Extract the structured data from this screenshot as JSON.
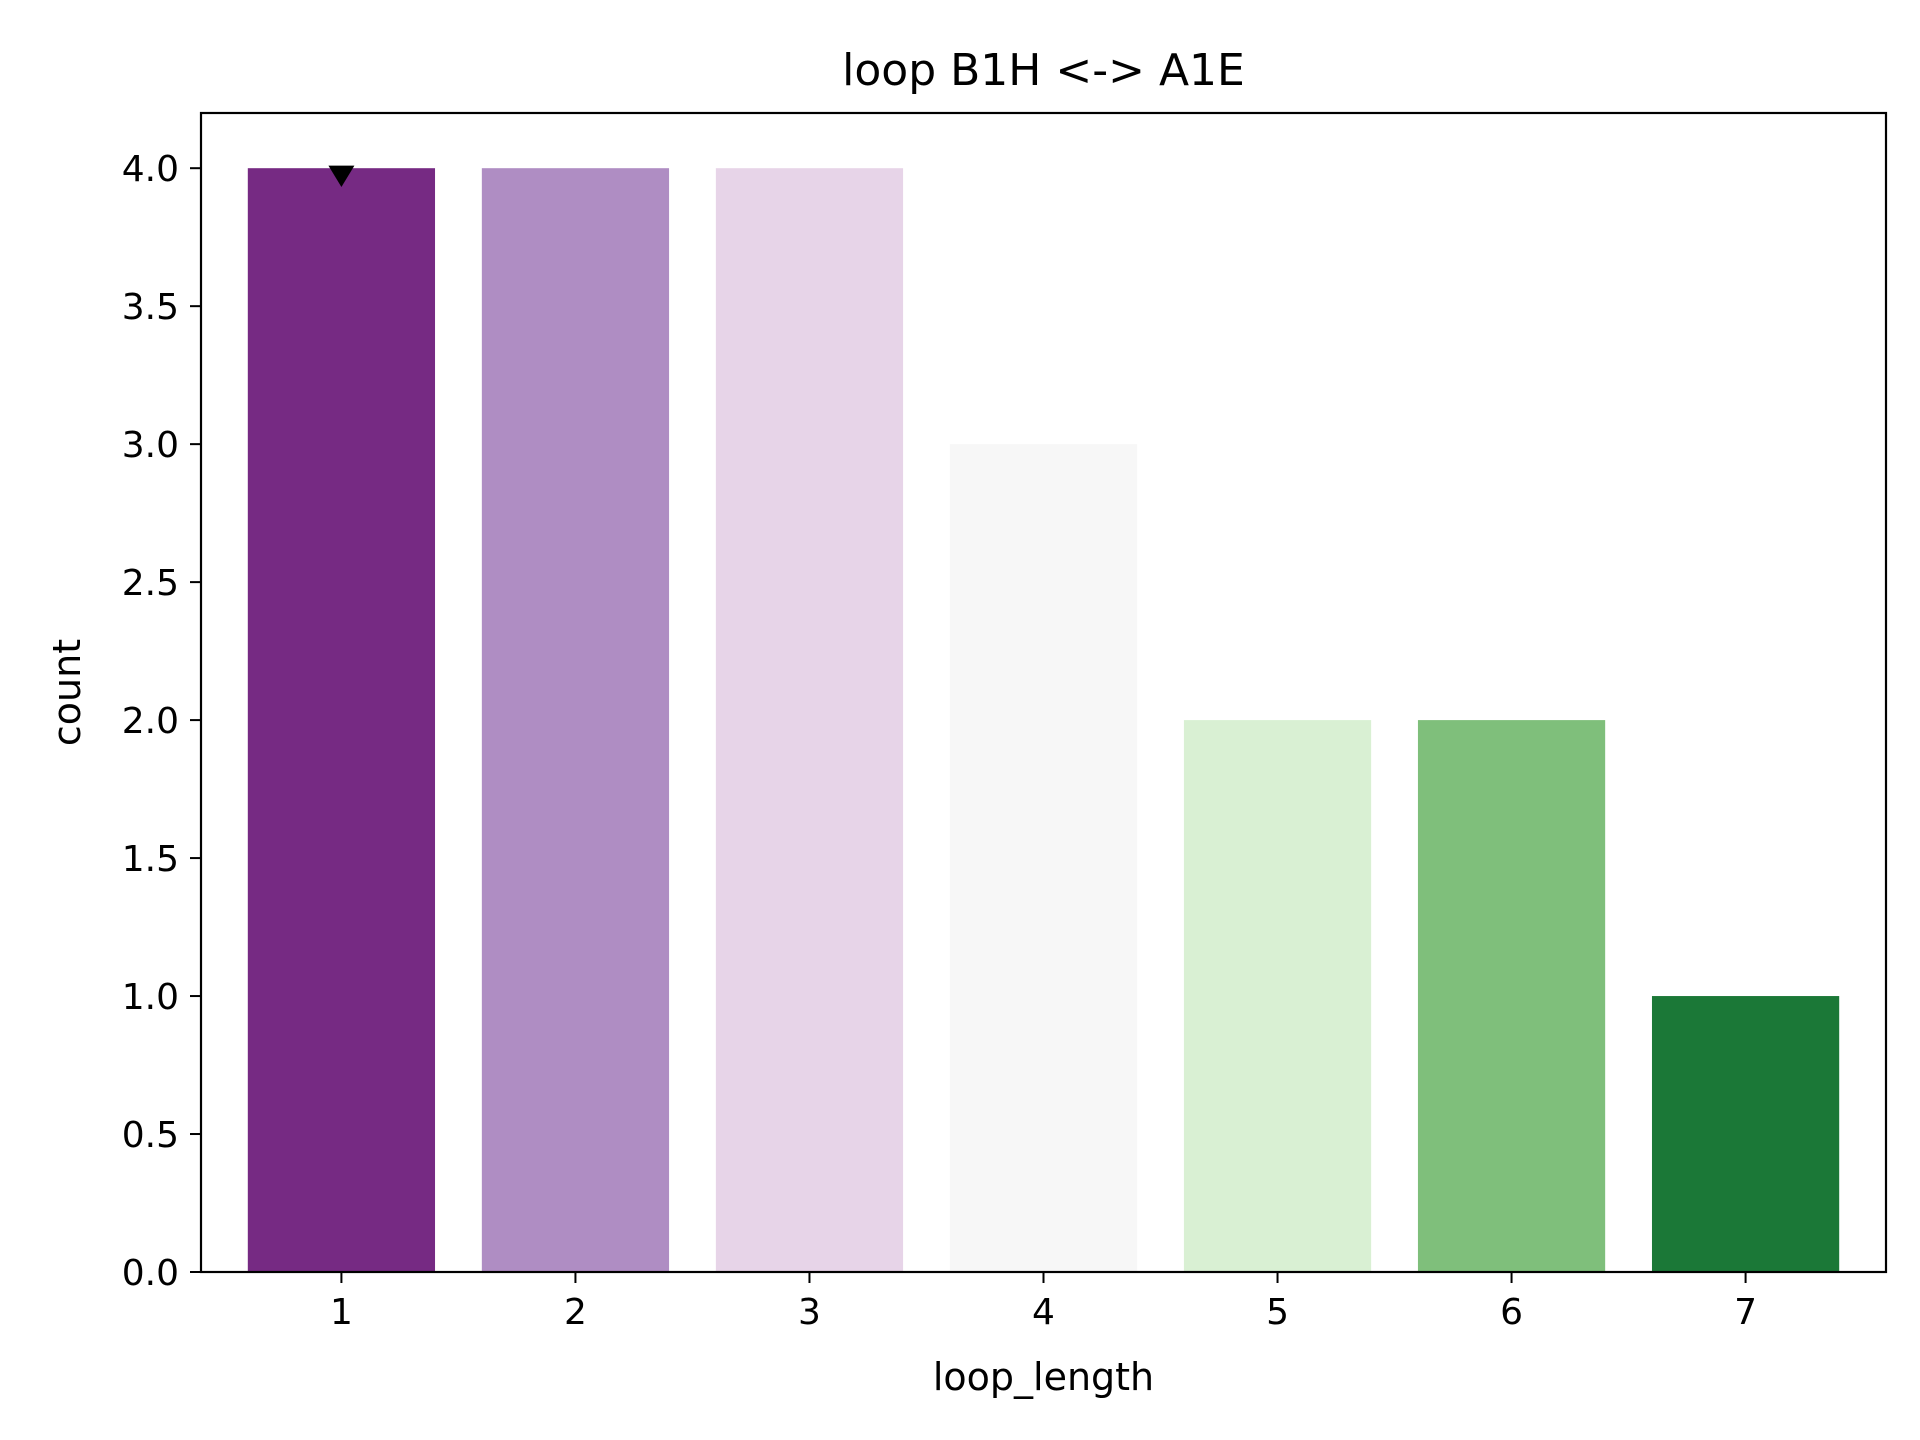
{
  "chart_data": {
    "type": "bar",
    "title": "loop B1H <-> A1E",
    "xlabel": "loop_length",
    "ylabel": "count",
    "categories": [
      "1",
      "2",
      "3",
      "4",
      "5",
      "6",
      "7"
    ],
    "values": [
      4,
      4,
      4,
      3,
      2,
      2,
      1
    ],
    "colors": [
      "#762a83",
      "#af8dc3",
      "#e7d4e8",
      "#f7f7f7",
      "#d9f0d3",
      "#7fbf7b",
      "#1b7837"
    ],
    "ylim": [
      0,
      4.2
    ],
    "yticks": [
      "0.0",
      "0.5",
      "1.0",
      "1.5",
      "2.0",
      "2.5",
      "3.0",
      "3.5",
      "4.0"
    ],
    "marker": {
      "category": "1",
      "value": 4,
      "shape": "triangle-down"
    },
    "grid": false,
    "legend": false
  }
}
